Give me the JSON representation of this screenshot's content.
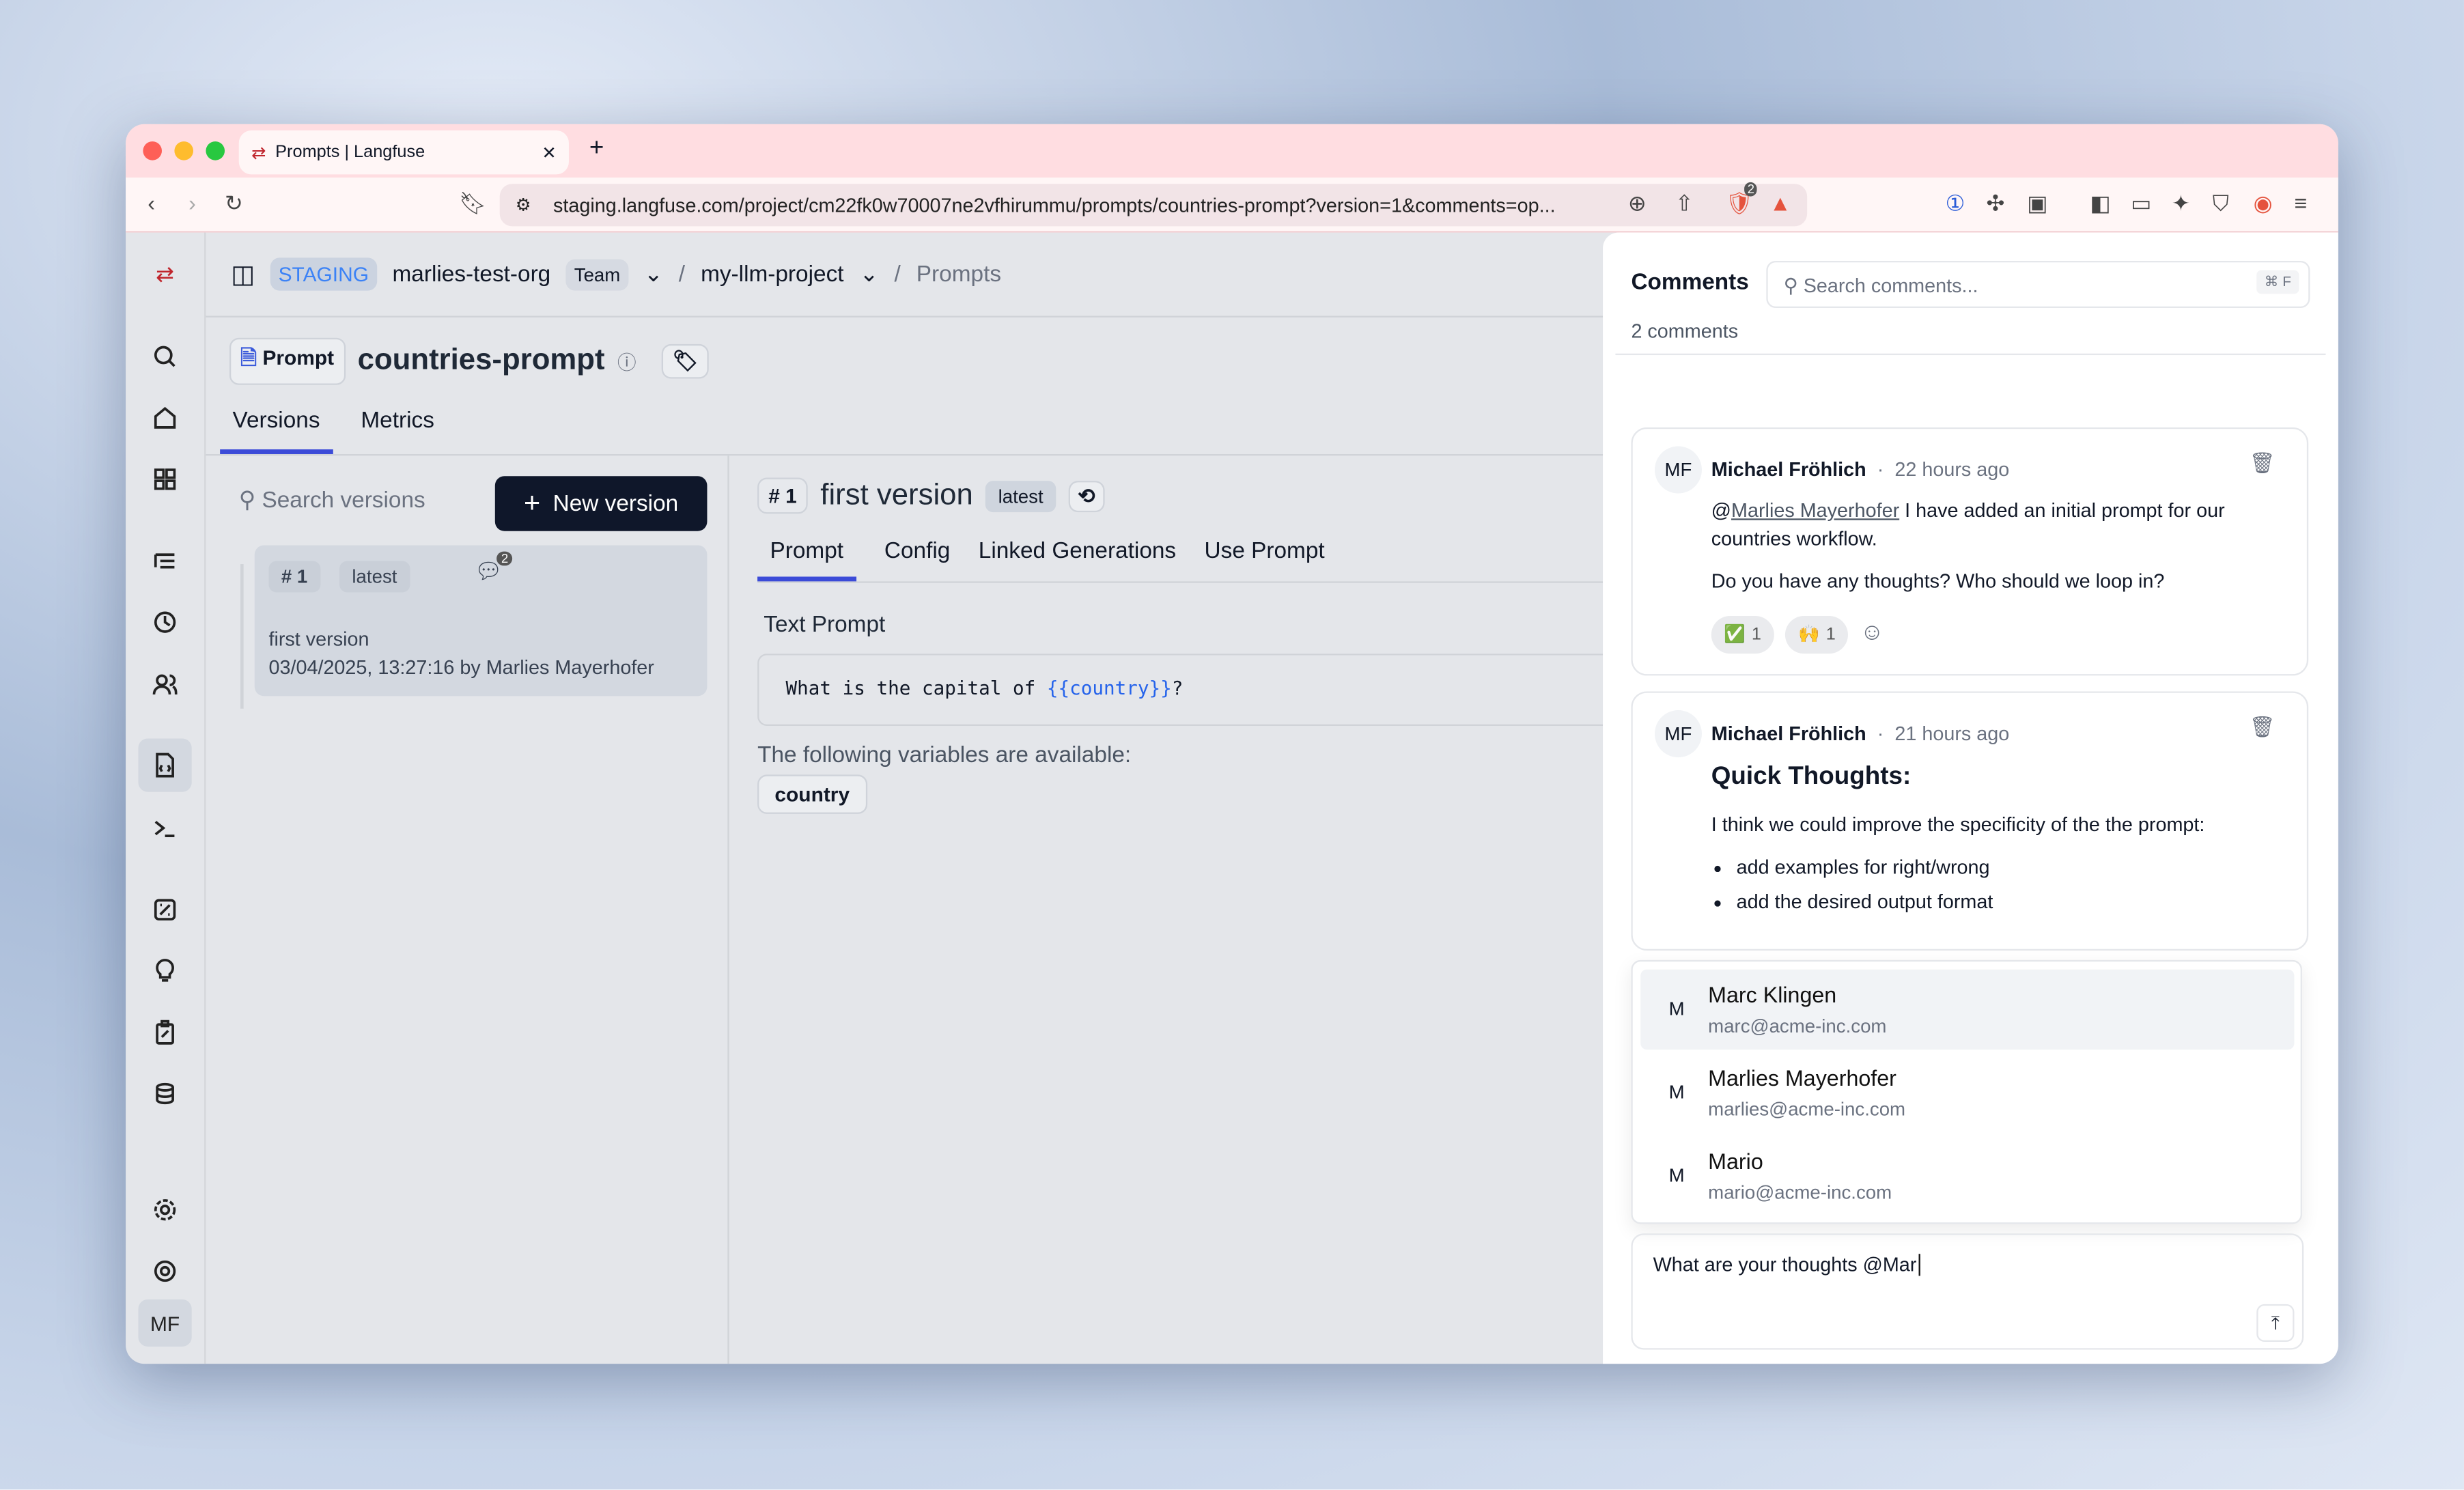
{
  "browser": {
    "tab_title": "Prompts | Langfuse",
    "url": "staging.langfuse.com/project/cm22fk0w70007ne2vfhirummu/prompts/countries-prompt?version=1&comments=op...",
    "extension_badge": "2"
  },
  "header": {
    "env": "STAGING",
    "org": "marlies-test-org",
    "org_badge": "Team",
    "project": "my-llm-project",
    "page": "Prompts"
  },
  "prompt": {
    "type_label": "Prompt",
    "name": "countries-prompt",
    "tabs": [
      "Versions",
      "Metrics"
    ]
  },
  "versions": {
    "search_placeholder": "Search versions",
    "new_button": "New version",
    "items": [
      {
        "number": "# 1",
        "label": "latest",
        "comment_count": "2",
        "name": "first version",
        "meta": "03/04/2025, 13:27:16 by Marlies Mayerhofer"
      }
    ]
  },
  "detail": {
    "number": "# 1",
    "title": "first version",
    "label": "latest",
    "tabs": [
      "Prompt",
      "Config",
      "Linked Generations",
      "Use Prompt"
    ],
    "section": "Text Prompt",
    "prompt_text": "What is the capital of ",
    "prompt_var": "{{country}}",
    "prompt_end": "?",
    "vars_heading": "The following variables are available:",
    "variables": [
      "country"
    ]
  },
  "sidebar": {
    "user_initials": "MF"
  },
  "comments": {
    "title": "Comments",
    "search_placeholder": "Search comments...",
    "shortcut": "⌘ F",
    "count": "2 comments",
    "items": [
      {
        "initials": "MF",
        "author": "Michael Fröhlich",
        "time": "22 hours ago",
        "mention": "@",
        "mention_name": "Marlies Mayerhofer",
        "text1": " I have added an initial prompt for our countries workflow.",
        "text2": "Do you have any thoughts? Who should we loop in?",
        "reactions": [
          {
            "emoji": "✅",
            "count": "1"
          },
          {
            "emoji": "🙌",
            "count": "1"
          }
        ]
      },
      {
        "initials": "MF",
        "author": "Michael Fröhlich",
        "time": "21 hours ago",
        "heading": "Quick Thoughts:",
        "text1": "I think we could improve the specificity of the the prompt:",
        "bullets": [
          "add examples for right/wrong",
          "add the desired output format"
        ]
      }
    ],
    "mention_options": [
      {
        "initial": "M",
        "name": "Marc Klingen",
        "email": "marc@acme-inc.com"
      },
      {
        "initial": "M",
        "name": "Marlies Mayerhofer",
        "email": "marlies@acme-inc.com"
      },
      {
        "initial": "M",
        "name": "Mario",
        "email": "mario@acme-inc.com"
      }
    ],
    "input_value": "What are your thoughts @Mar"
  }
}
